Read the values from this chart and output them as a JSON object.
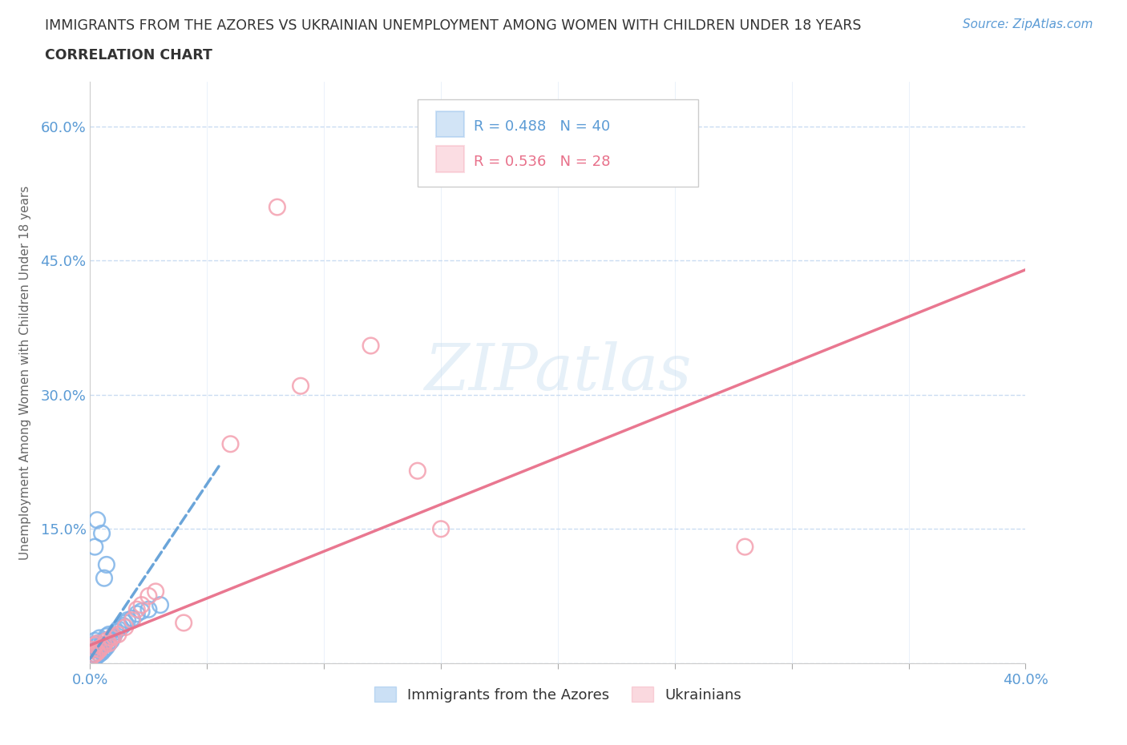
{
  "title": "IMMIGRANTS FROM THE AZORES VS UKRAINIAN UNEMPLOYMENT AMONG WOMEN WITH CHILDREN UNDER 18 YEARS",
  "subtitle": "CORRELATION CHART",
  "source": "Source: ZipAtlas.com",
  "ylabel": "Unemployment Among Women with Children Under 18 years",
  "xlim": [
    0.0,
    0.4
  ],
  "ylim": [
    0.0,
    0.65
  ],
  "xticks": [
    0.0,
    0.05,
    0.1,
    0.15,
    0.2,
    0.25,
    0.3,
    0.35,
    0.4
  ],
  "xticklabels": [
    "0.0%",
    "",
    "",
    "",
    "",
    "",
    "",
    "",
    "40.0%"
  ],
  "yticks": [
    0.0,
    0.15,
    0.3,
    0.45,
    0.6
  ],
  "yticklabels": [
    "",
    "15.0%",
    "30.0%",
    "45.0%",
    "60.0%"
  ],
  "azores_R": 0.488,
  "azores_N": 40,
  "ukrainian_R": 0.536,
  "ukrainian_N": 28,
  "azores_color": "#7eb3e8",
  "ukrainian_color": "#f4a0b0",
  "azores_line_color": "#5b9bd5",
  "ukrainian_line_color": "#e8708a",
  "tick_color": "#5b9bd5",
  "grid_color": "#c5d9f1",
  "title_color": "#404040",
  "watermark_text": "ZIPatlas",
  "azores_scatter": [
    [
      0.001,
      0.005
    ],
    [
      0.001,
      0.01
    ],
    [
      0.001,
      0.015
    ],
    [
      0.001,
      0.02
    ],
    [
      0.002,
      0.005
    ],
    [
      0.002,
      0.01
    ],
    [
      0.002,
      0.018
    ],
    [
      0.002,
      0.025
    ],
    [
      0.003,
      0.008
    ],
    [
      0.003,
      0.015
    ],
    [
      0.003,
      0.022
    ],
    [
      0.004,
      0.01
    ],
    [
      0.004,
      0.018
    ],
    [
      0.004,
      0.028
    ],
    [
      0.005,
      0.012
    ],
    [
      0.005,
      0.02
    ],
    [
      0.006,
      0.015
    ],
    [
      0.006,
      0.025
    ],
    [
      0.007,
      0.018
    ],
    [
      0.007,
      0.03
    ],
    [
      0.008,
      0.022
    ],
    [
      0.008,
      0.032
    ],
    [
      0.009,
      0.025
    ],
    [
      0.01,
      0.03
    ],
    [
      0.011,
      0.035
    ],
    [
      0.012,
      0.038
    ],
    [
      0.013,
      0.04
    ],
    [
      0.014,
      0.042
    ],
    [
      0.015,
      0.045
    ],
    [
      0.016,
      0.048
    ],
    [
      0.018,
      0.05
    ],
    [
      0.02,
      0.055
    ],
    [
      0.022,
      0.058
    ],
    [
      0.025,
      0.06
    ],
    [
      0.003,
      0.16
    ],
    [
      0.03,
      0.065
    ],
    [
      0.006,
      0.095
    ],
    [
      0.007,
      0.11
    ],
    [
      0.005,
      0.145
    ],
    [
      0.002,
      0.13
    ]
  ],
  "ukrainian_scatter": [
    [
      0.001,
      0.008
    ],
    [
      0.001,
      0.015
    ],
    [
      0.002,
      0.01
    ],
    [
      0.002,
      0.02
    ],
    [
      0.003,
      0.012
    ],
    [
      0.003,
      0.022
    ],
    [
      0.004,
      0.015
    ],
    [
      0.005,
      0.018
    ],
    [
      0.006,
      0.02
    ],
    [
      0.007,
      0.025
    ],
    [
      0.008,
      0.022
    ],
    [
      0.009,
      0.028
    ],
    [
      0.01,
      0.03
    ],
    [
      0.012,
      0.032
    ],
    [
      0.015,
      0.04
    ],
    [
      0.018,
      0.048
    ],
    [
      0.02,
      0.06
    ],
    [
      0.022,
      0.065
    ],
    [
      0.025,
      0.075
    ],
    [
      0.028,
      0.08
    ],
    [
      0.06,
      0.245
    ],
    [
      0.09,
      0.31
    ],
    [
      0.12,
      0.355
    ],
    [
      0.15,
      0.15
    ],
    [
      0.28,
      0.13
    ],
    [
      0.08,
      0.51
    ],
    [
      0.14,
      0.215
    ],
    [
      0.04,
      0.045
    ]
  ],
  "azores_trend_x": [
    0.0,
    0.055
  ],
  "azores_trend_y": [
    0.005,
    0.22
  ],
  "ukrainian_trend_x": [
    0.0,
    0.4
  ],
  "ukrainian_trend_y": [
    0.02,
    0.44
  ]
}
